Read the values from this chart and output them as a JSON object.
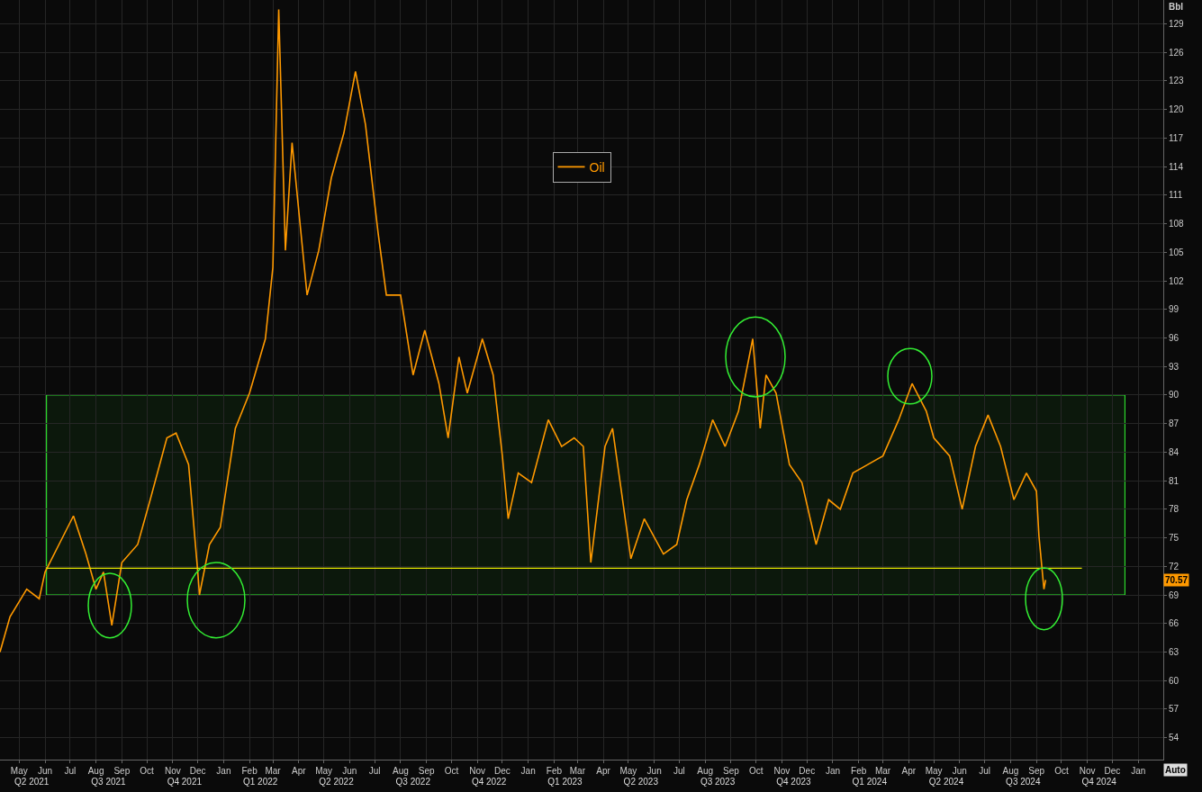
{
  "chart_data": {
    "type": "line",
    "ylabel": "Bbl",
    "x": [
      "2021-04-08",
      "2021-04-20",
      "2021-05-10",
      "2021-05-25",
      "2021-06-01",
      "2021-06-20",
      "2021-07-05",
      "2021-07-20",
      "2021-08-01",
      "2021-08-10",
      "2021-08-20",
      "2021-09-01",
      "2021-09-20",
      "2021-10-05",
      "2021-10-25",
      "2021-11-05",
      "2021-11-20",
      "2021-12-01",
      "2021-12-03",
      "2021-12-15",
      "2021-12-28",
      "2022-01-15",
      "2022-02-01",
      "2022-02-20",
      "2022-03-01",
      "2022-03-08",
      "2022-03-16",
      "2022-03-24",
      "2022-04-11",
      "2022-04-25",
      "2022-05-10",
      "2022-05-25",
      "2022-06-08",
      "2022-06-20",
      "2022-07-05",
      "2022-07-15",
      "2022-08-01",
      "2022-08-16",
      "2022-08-30",
      "2022-09-16",
      "2022-09-27",
      "2022-10-10",
      "2022-10-20",
      "2022-11-07",
      "2022-11-20",
      "2022-12-01",
      "2022-12-08",
      "2022-12-20",
      "2023-01-05",
      "2023-01-25",
      "2023-02-10",
      "2023-02-25",
      "2023-03-08",
      "2023-03-17",
      "2023-04-03",
      "2023-04-12",
      "2023-05-04",
      "2023-05-20",
      "2023-06-12",
      "2023-06-28",
      "2023-07-10",
      "2023-07-25",
      "2023-08-10",
      "2023-08-25",
      "2023-09-10",
      "2023-09-27",
      "2023-10-06",
      "2023-10-13",
      "2023-10-25",
      "2023-11-10",
      "2023-11-25",
      "2023-12-12",
      "2023-12-27",
      "2024-01-10",
      "2024-01-25",
      "2024-02-12",
      "2024-03-01",
      "2024-03-20",
      "2024-04-05",
      "2024-04-22",
      "2024-05-01",
      "2024-05-20",
      "2024-06-04",
      "2024-06-20",
      "2024-07-05",
      "2024-07-20",
      "2024-08-05",
      "2024-08-20",
      "2024-09-01",
      "2024-09-04",
      "2024-09-10",
      "2024-09-12"
    ],
    "series": [
      {
        "name": "Oil",
        "color": "#ff9900",
        "values": [
          63,
          66.7,
          69.6,
          68.6,
          71.4,
          74.7,
          77.3,
          73.3,
          69.6,
          71.4,
          65.8,
          72.4,
          74.3,
          79,
          85.5,
          86,
          82.7,
          71.4,
          69,
          74.3,
          76.1,
          86.5,
          90.2,
          95.9,
          103.4,
          130.5,
          105.2,
          116.5,
          100.5,
          105.2,
          112.8,
          117.5,
          124,
          118.4,
          107.1,
          100.5,
          100.5,
          92.1,
          96.8,
          91.2,
          85.5,
          94,
          90.2,
          95.9,
          92.1,
          83.6,
          77,
          81.8,
          80.8,
          87.4,
          84.6,
          85.5,
          84.6,
          72.4,
          84.6,
          86.5,
          72.8,
          77,
          73.3,
          74.3,
          79,
          82.7,
          87.4,
          84.6,
          88.3,
          95.9,
          86.5,
          92.1,
          90.2,
          82.7,
          80.8,
          74.3,
          79,
          78,
          81.8,
          82.7,
          83.6,
          87.4,
          91.2,
          88.3,
          85.5,
          83.6,
          78,
          84.6,
          87.9,
          84.6,
          79,
          81.8,
          79.9,
          75.2,
          69.6,
          70.57
        ]
      }
    ],
    "xlim": [
      "2021-04-08",
      "2025-01-31"
    ],
    "xticks": [
      {
        "value": "2021-05-01",
        "label": "May"
      },
      {
        "value": "2021-06-01",
        "label": "Jun"
      },
      {
        "value": "2021-07-01",
        "label": "Jul"
      },
      {
        "value": "2021-08-01",
        "label": "Aug"
      },
      {
        "value": "2021-09-01",
        "label": "Sep"
      },
      {
        "value": "2021-10-01",
        "label": "Oct"
      },
      {
        "value": "2021-11-01",
        "label": "Nov"
      },
      {
        "value": "2021-12-01",
        "label": "Dec"
      },
      {
        "value": "2022-01-01",
        "label": "Jan"
      },
      {
        "value": "2022-02-01",
        "label": "Feb"
      },
      {
        "value": "2022-03-01",
        "label": "Mar"
      },
      {
        "value": "2022-04-01",
        "label": "Apr"
      },
      {
        "value": "2022-05-01",
        "label": "May"
      },
      {
        "value": "2022-06-01",
        "label": "Jun"
      },
      {
        "value": "2022-07-01",
        "label": "Jul"
      },
      {
        "value": "2022-08-01",
        "label": "Aug"
      },
      {
        "value": "2022-09-01",
        "label": "Sep"
      },
      {
        "value": "2022-10-01",
        "label": "Oct"
      },
      {
        "value": "2022-11-01",
        "label": "Nov"
      },
      {
        "value": "2022-12-01",
        "label": "Dec"
      },
      {
        "value": "2023-01-01",
        "label": "Jan"
      },
      {
        "value": "2023-02-01",
        "label": "Feb"
      },
      {
        "value": "2023-03-01",
        "label": "Mar"
      },
      {
        "value": "2023-04-01",
        "label": "Apr"
      },
      {
        "value": "2023-05-01",
        "label": "May"
      },
      {
        "value": "2023-06-01",
        "label": "Jun"
      },
      {
        "value": "2023-07-01",
        "label": "Jul"
      },
      {
        "value": "2023-08-01",
        "label": "Aug"
      },
      {
        "value": "2023-09-01",
        "label": "Sep"
      },
      {
        "value": "2023-10-01",
        "label": "Oct"
      },
      {
        "value": "2023-11-01",
        "label": "Nov"
      },
      {
        "value": "2023-12-01",
        "label": "Dec"
      },
      {
        "value": "2024-01-01",
        "label": "Jan"
      },
      {
        "value": "2024-02-01",
        "label": "Feb"
      },
      {
        "value": "2024-03-01",
        "label": "Mar"
      },
      {
        "value": "2024-04-01",
        "label": "Apr"
      },
      {
        "value": "2024-05-01",
        "label": "May"
      },
      {
        "value": "2024-06-01",
        "label": "Jun"
      },
      {
        "value": "2024-07-01",
        "label": "Jul"
      },
      {
        "value": "2024-08-01",
        "label": "Aug"
      },
      {
        "value": "2024-09-01",
        "label": "Sep"
      },
      {
        "value": "2024-10-01",
        "label": "Oct"
      },
      {
        "value": "2024-11-01",
        "label": "Nov"
      },
      {
        "value": "2024-12-01",
        "label": "Dec"
      },
      {
        "value": "2025-01-01",
        "label": "Jan"
      }
    ],
    "x2lim": [
      "2021-04-08",
      "2025-01-31"
    ],
    "x2ticks": [
      {
        "value": "2021-05-16",
        "label": "Q2 2021"
      },
      {
        "value": "2021-08-16",
        "label": "Q3 2021"
      },
      {
        "value": "2021-11-15",
        "label": "Q4 2021"
      },
      {
        "value": "2022-02-14",
        "label": "Q1 2022"
      },
      {
        "value": "2022-05-16",
        "label": "Q2 2022"
      },
      {
        "value": "2022-08-16",
        "label": "Q3 2022"
      },
      {
        "value": "2022-11-15",
        "label": "Q4 2022"
      },
      {
        "value": "2023-02-14",
        "label": "Q1 2023"
      },
      {
        "value": "2023-05-16",
        "label": "Q2 2023"
      },
      {
        "value": "2023-08-16",
        "label": "Q3 2023"
      },
      {
        "value": "2023-11-15",
        "label": "Q4 2023"
      },
      {
        "value": "2024-02-14",
        "label": "Q1 2024"
      },
      {
        "value": "2024-05-16",
        "label": "Q2 2024"
      },
      {
        "value": "2024-08-16",
        "label": "Q3 2024"
      },
      {
        "value": "2024-11-15",
        "label": "Q4 2024"
      }
    ],
    "ylim": [
      51.7,
      131.5
    ],
    "yticks": [
      54,
      57,
      60,
      63,
      66,
      69,
      72,
      75,
      78,
      81,
      84,
      87,
      90,
      93,
      96,
      99,
      102,
      105,
      108,
      111,
      114,
      117,
      120,
      123,
      126,
      129
    ],
    "ref_lines": [
      {
        "axis": "y",
        "value": 71.8,
        "color": "#e6e600"
      }
    ],
    "bands": [
      {
        "axis": "y",
        "from": 69,
        "to": 90,
        "color": "#33ff33"
      }
    ],
    "annotations": [
      {
        "text": "70.57",
        "y": 70.57
      },
      "Auto"
    ],
    "grid": true,
    "legend": "top",
    "marker": "none",
    "line_style": "solid"
  }
}
